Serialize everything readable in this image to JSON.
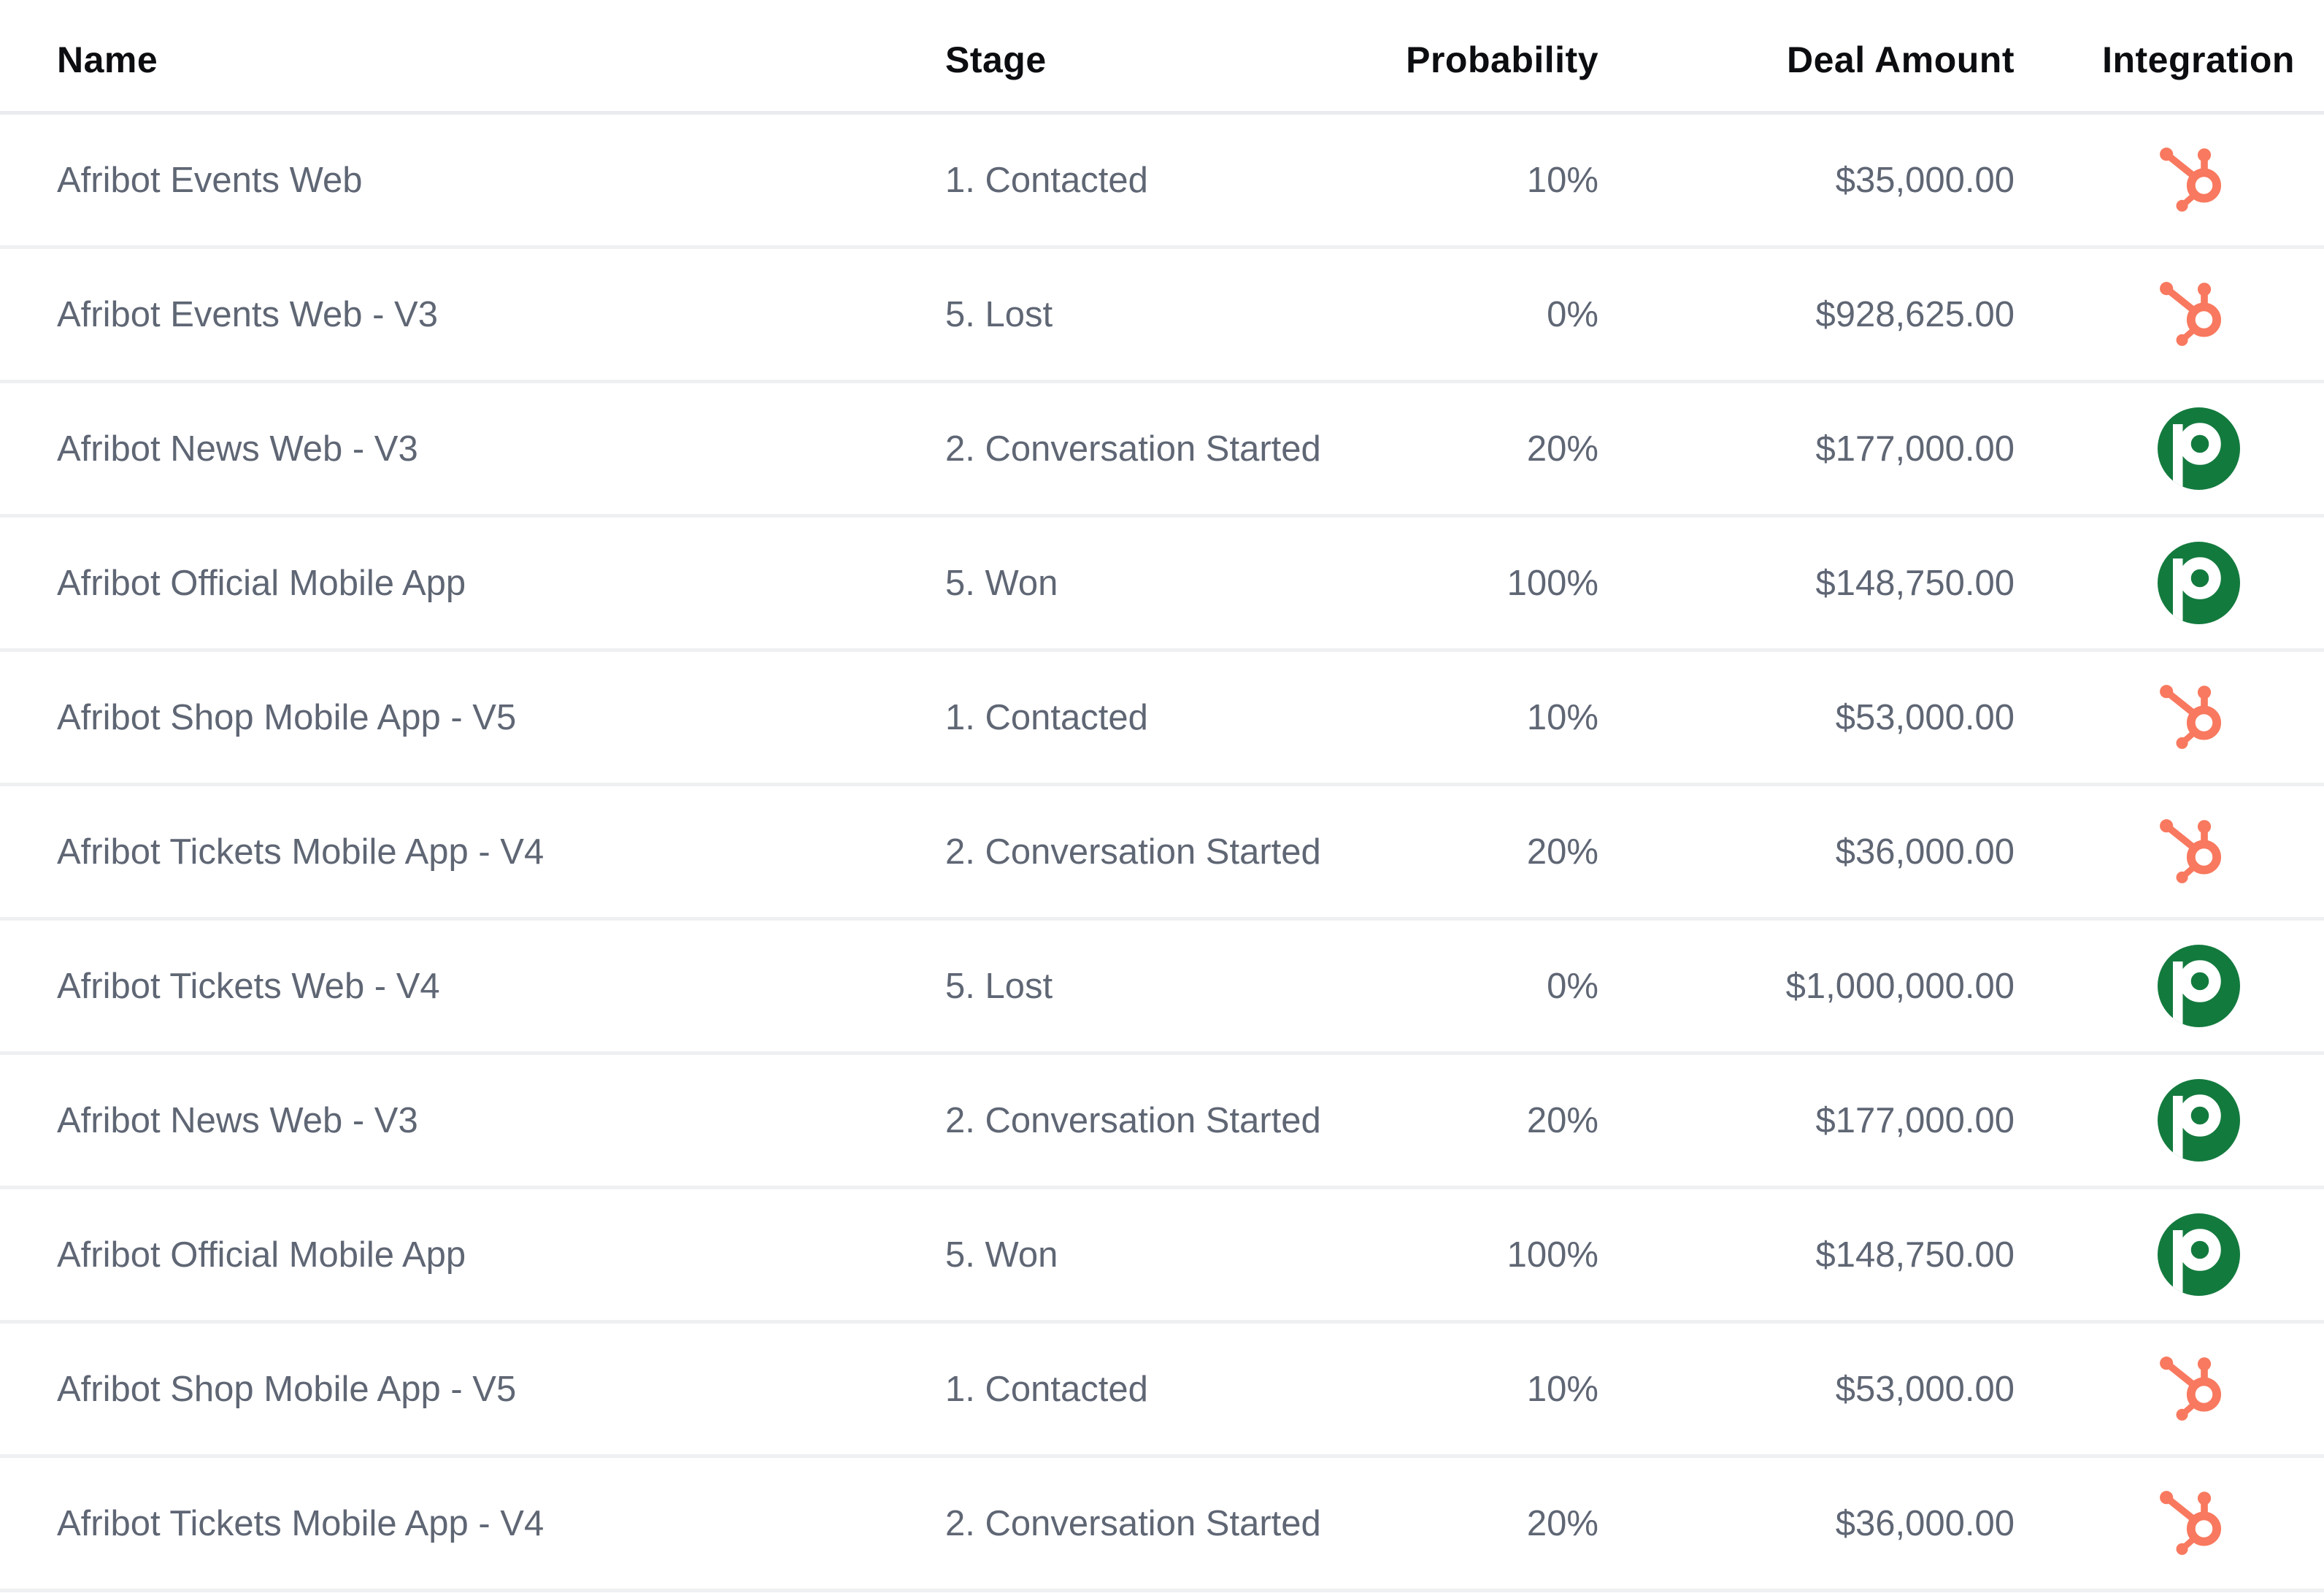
{
  "table": {
    "columns": [
      {
        "key": "name",
        "label": "Name"
      },
      {
        "key": "stage",
        "label": "Stage"
      },
      {
        "key": "probability",
        "label": "Probability"
      },
      {
        "key": "deal_amount",
        "label": "Deal Amount"
      },
      {
        "key": "integration",
        "label": "Integration"
      }
    ],
    "rows": [
      {
        "name": "Afribot Events Web",
        "stage": "1. Contacted",
        "probability": "10%",
        "deal_amount": "$35,000.00",
        "integration": "hubspot"
      },
      {
        "name": "Afribot Events Web - V3",
        "stage": "5. Lost",
        "probability": "0%",
        "deal_amount": "$928,625.00",
        "integration": "hubspot"
      },
      {
        "name": "Afribot News Web - V3",
        "stage": "2. Conversation Started",
        "probability": "20%",
        "deal_amount": "$177,000.00",
        "integration": "pipedrive"
      },
      {
        "name": "Afribot Official Mobile App",
        "stage": "5. Won",
        "probability": "100%",
        "deal_amount": "$148,750.00",
        "integration": "pipedrive"
      },
      {
        "name": "Afribot Shop Mobile App - V5",
        "stage": "1. Contacted",
        "probability": "10%",
        "deal_amount": "$53,000.00",
        "integration": "hubspot"
      },
      {
        "name": "Afribot Tickets Mobile App - V4",
        "stage": "2. Conversation Started",
        "probability": "20%",
        "deal_amount": "$36,000.00",
        "integration": "hubspot"
      },
      {
        "name": "Afribot Tickets Web - V4",
        "stage": "5. Lost",
        "probability": "0%",
        "deal_amount": "$1,000,000.00",
        "integration": "pipedrive"
      },
      {
        "name": "Afribot News Web - V3",
        "stage": "2. Conversation Started",
        "probability": "20%",
        "deal_amount": "$177,000.00",
        "integration": "pipedrive"
      },
      {
        "name": "Afribot Official Mobile App",
        "stage": "5. Won",
        "probability": "100%",
        "deal_amount": "$148,750.00",
        "integration": "pipedrive"
      },
      {
        "name": "Afribot Shop Mobile App - V5",
        "stage": "1. Contacted",
        "probability": "10%",
        "deal_amount": "$53,000.00",
        "integration": "hubspot"
      },
      {
        "name": "Afribot Tickets Mobile App - V4",
        "stage": "2. Conversation Started",
        "probability": "20%",
        "deal_amount": "$36,000.00",
        "integration": "hubspot"
      }
    ],
    "integration_icons": {
      "hubspot": {
        "label": "HubSpot",
        "color": "#f8795f"
      },
      "pipedrive": {
        "label": "Pipedrive",
        "circle_color": "#137a3e",
        "glyph": "p",
        "glyph_color": "#ffffff"
      }
    },
    "colors": {
      "header_text": "#0c0d10",
      "body_text": "#5f6674",
      "row_divider": "#eef0f2",
      "background": "#ffffff"
    }
  }
}
